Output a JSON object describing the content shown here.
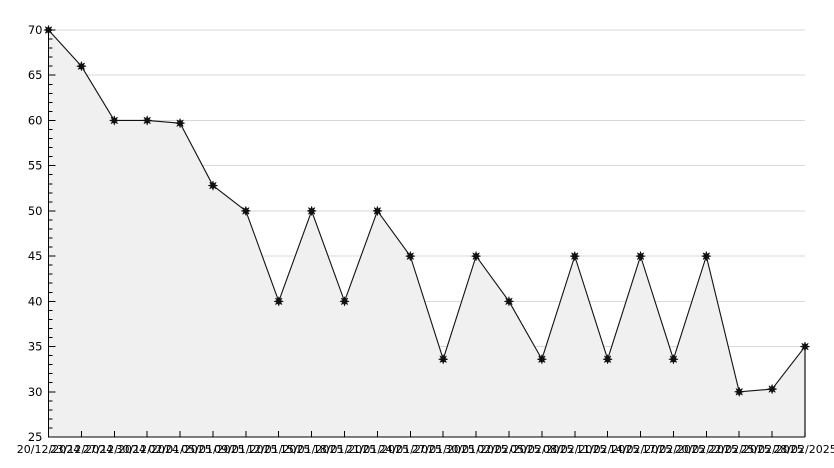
{
  "chart_data": {
    "type": "area",
    "title": "",
    "xlabel": "",
    "ylabel": "",
    "x": [
      "20/12/2024",
      "23/12/2024",
      "27/12/2024",
      "30/12/2024",
      "02/01/2025",
      "05/01/2025",
      "09/01/2025",
      "12/01/2025",
      "15/01/2025",
      "18/01/2025",
      "21/01/2025",
      "24/01/2025",
      "27/01/2025",
      "30/01/2025",
      "02/02/2025",
      "05/02/2025",
      "08/02/2025",
      "11/02/2025",
      "14/02/2025",
      "17/02/2025",
      "20/02/2025",
      "22/02/2025",
      "25/02/2025",
      "28/02/2025"
    ],
    "values": [
      70,
      66,
      60,
      60,
      59.7,
      52.8,
      50,
      40,
      50,
      40,
      50,
      45,
      33.6,
      45,
      40,
      33.6,
      45,
      33.6,
      45,
      33.6,
      45,
      30,
      30.3,
      35
    ],
    "ylim": [
      25,
      70
    ],
    "y_major_step": 5,
    "y_minor_step": 1,
    "grid": "horizontal-major",
    "legend_position": "none",
    "marker": "black-star",
    "colors": {
      "line": "#111111",
      "marker": "#111111",
      "area_fill": "#f0f0f0",
      "gridline": "#d8d8d8",
      "axis": "#000000",
      "text": "#000000",
      "background": "#ffffff"
    }
  },
  "axes": {
    "y_tick_labels": [
      "25",
      "30",
      "35",
      "40",
      "45",
      "50",
      "55",
      "60",
      "65",
      "70"
    ],
    "x_tick_labels": [
      "20/12/2024",
      "23/12/2024",
      "27/12/2024",
      "30/12/2024",
      "02/01/2025",
      "05/01/2025",
      "09/01/2025",
      "12/01/2025",
      "15/01/2025",
      "18/01/2025",
      "21/01/2025",
      "24/01/2025",
      "27/01/2025",
      "30/01/2025",
      "02/02/2025",
      "05/02/2025",
      "08/02/2025",
      "11/02/2025",
      "14/02/2025",
      "17/02/2025",
      "20/02/2025",
      "22/02/2025",
      "25/02/2025",
      "28/02/2025"
    ]
  }
}
